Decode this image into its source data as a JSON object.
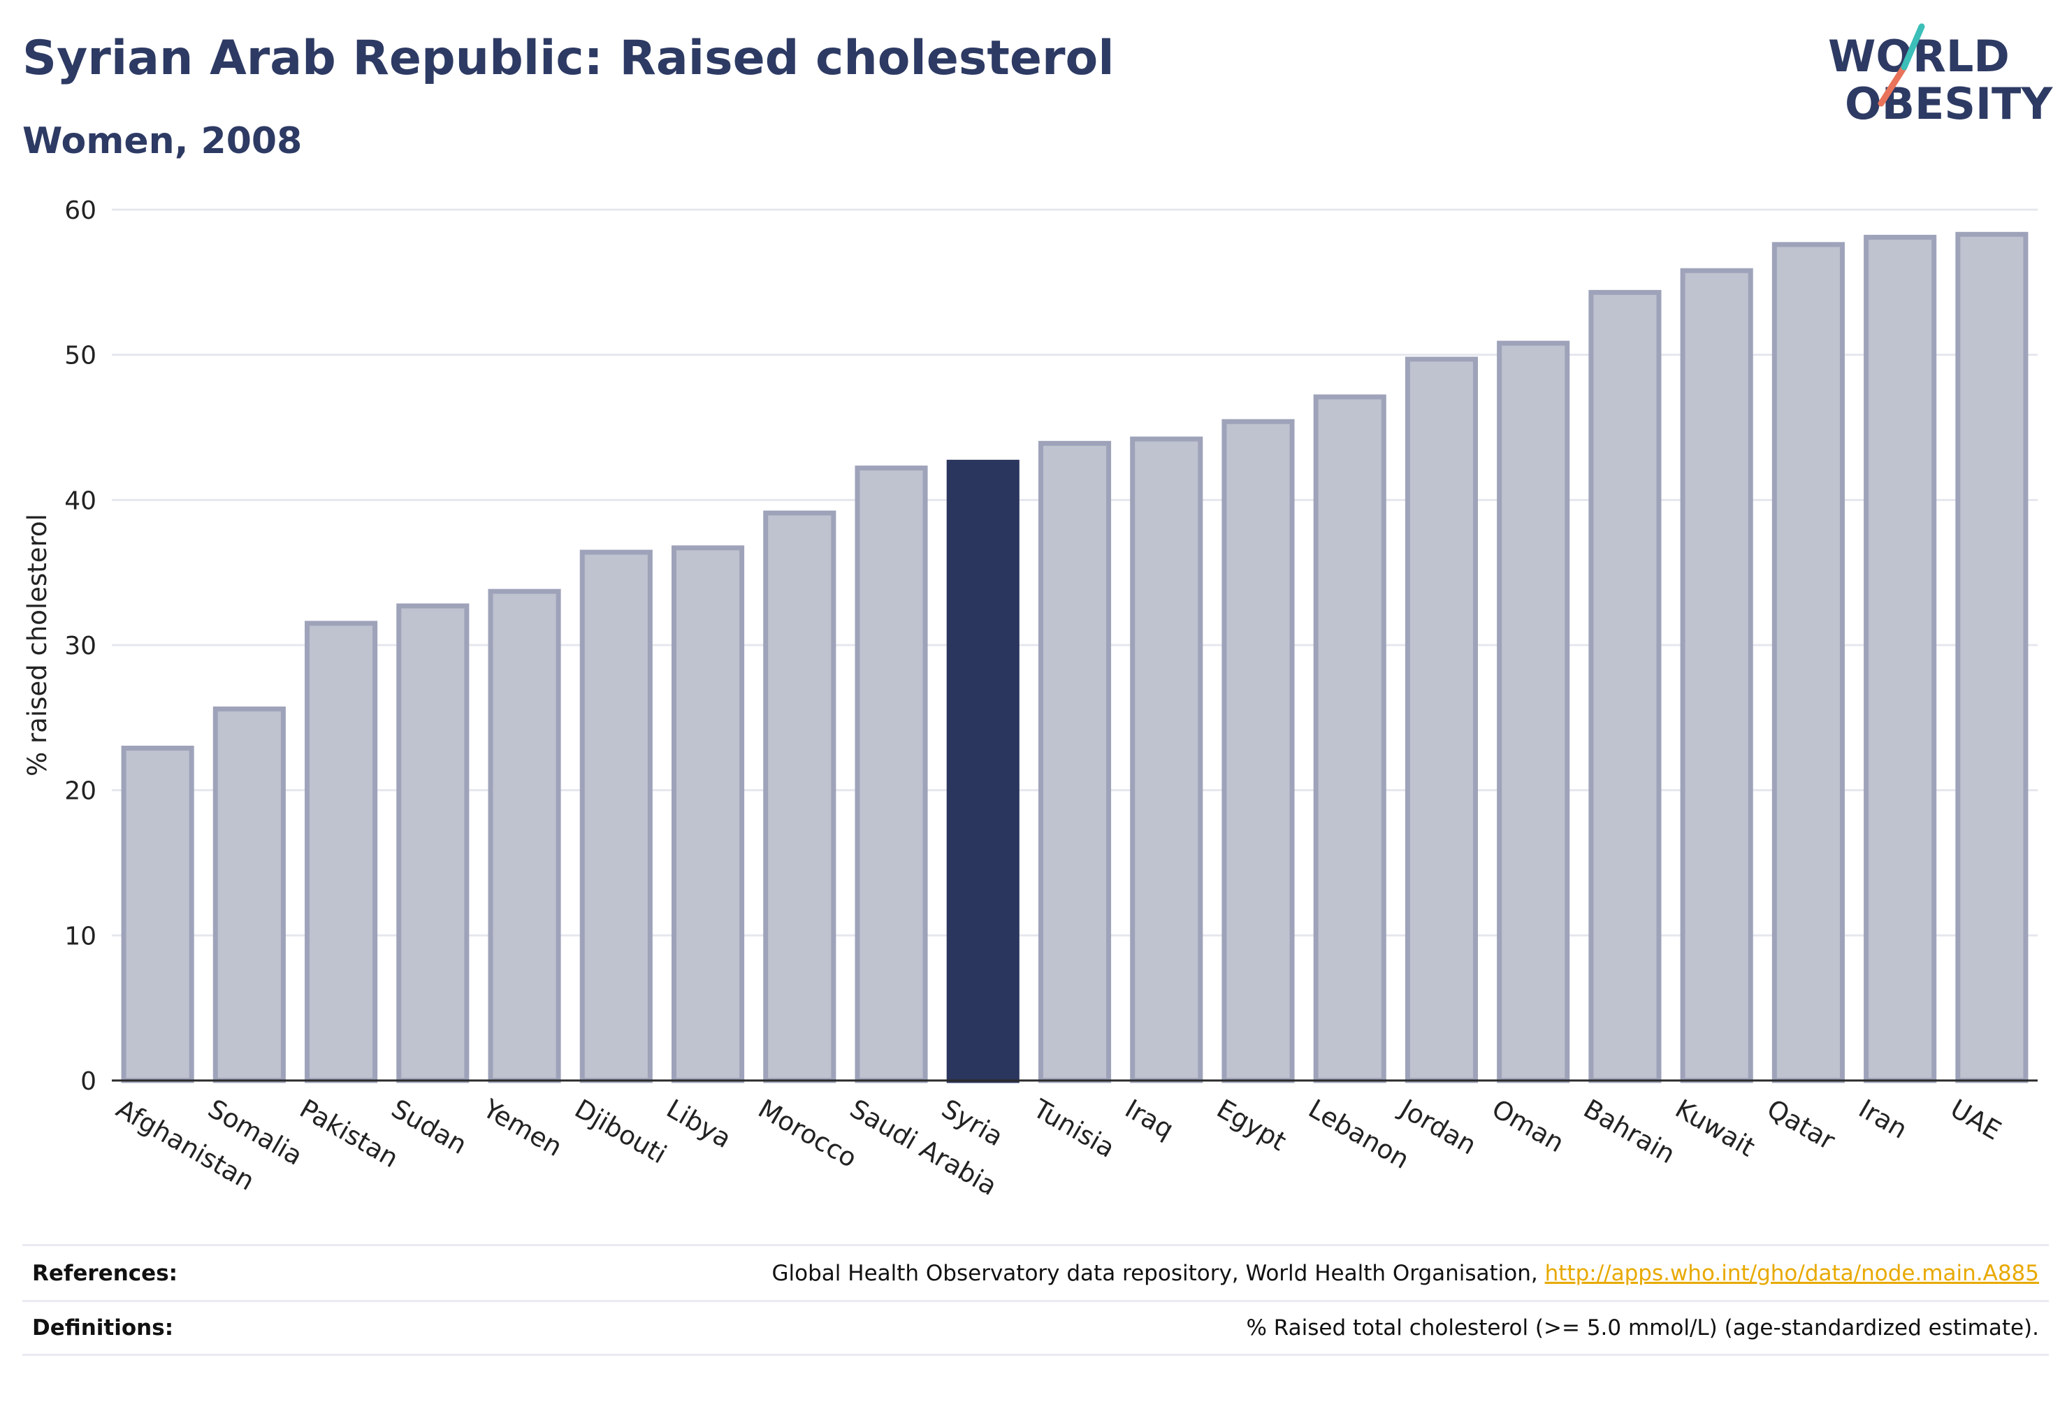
{
  "header": {
    "title": "Syrian Arab Republic: Raised cholesterol",
    "subtitle": "Women, 2008"
  },
  "logo": {
    "line1": "WORLD",
    "line2": "OBESITY"
  },
  "chart_data": {
    "type": "bar",
    "title": "Syrian Arab Republic: Raised cholesterol",
    "subtitle": "Women, 2008",
    "xlabel": "",
    "ylabel": "% raised cholesterol",
    "ylim": [
      0,
      60
    ],
    "yticks": [
      0,
      10,
      20,
      30,
      40,
      50,
      60
    ],
    "grid": true,
    "legend": "none",
    "categories": [
      "Afghanistan",
      "Somalia",
      "Pakistan",
      "Sudan",
      "Yemen",
      "Djibouti",
      "Libya",
      "Morocco",
      "Saudi Arabia",
      "Syria",
      "Tunisia",
      "Iraq",
      "Egypt",
      "Lebanon",
      "Jordan",
      "Oman",
      "Bahrain",
      "Kuwait",
      "Qatar",
      "Iran",
      "UAE"
    ],
    "values": [
      22.9,
      25.6,
      31.5,
      32.7,
      33.7,
      36.4,
      36.7,
      39.1,
      42.2,
      42.6,
      43.9,
      44.2,
      45.4,
      47.1,
      49.7,
      50.8,
      54.3,
      55.8,
      57.6,
      58.1,
      58.3
    ],
    "highlight": "Syria",
    "colors": {
      "highlight": "#2b365e",
      "bar_fill": "#bfc2cf",
      "bar_edge": "#9ea3ba"
    }
  },
  "references": {
    "label": "References:",
    "text": "Global Health Observatory data repository, World Health Organisation, ",
    "link": "http://apps.who.int/gho/data/node.main.A885"
  },
  "definitions": {
    "label": "Definitions:",
    "text": "% Raised total cholesterol (>= 5.0 mmol/L) (age-standardized estimate)."
  }
}
